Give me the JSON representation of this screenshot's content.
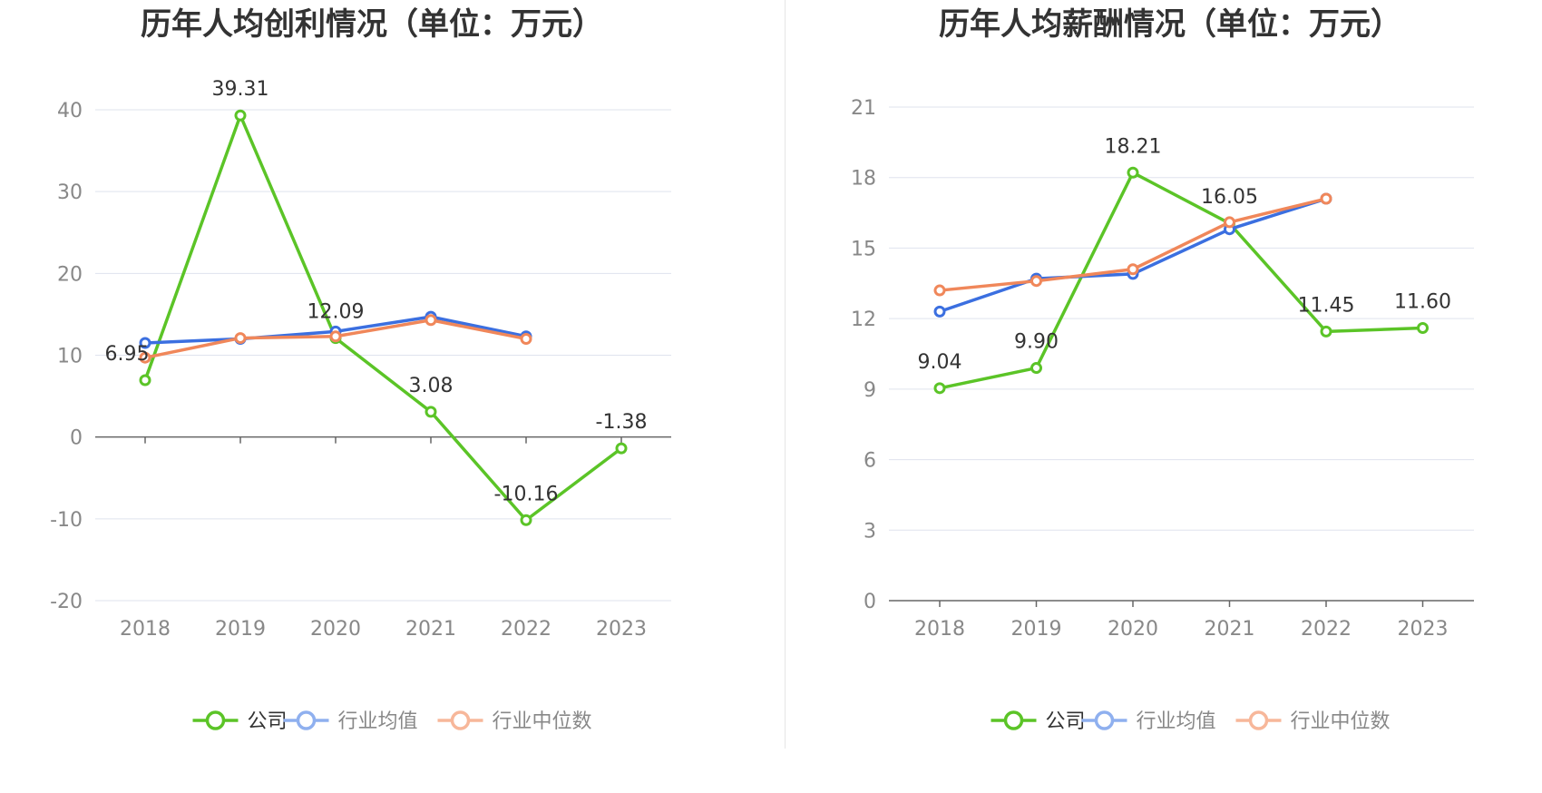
{
  "chart_data": [
    {
      "type": "line",
      "title": "历年人均创利情况（单位：万元）",
      "categories": [
        "2018",
        "2019",
        "2020",
        "2021",
        "2022",
        "2023"
      ],
      "yticks": [
        "40",
        "30",
        "20",
        "10",
        "0",
        "-10",
        "-20"
      ],
      "ylim": [
        -20,
        40
      ],
      "grid": true,
      "legend_position": "bottom",
      "series": [
        {
          "name": "公司",
          "color": "#5bc427",
          "values": [
            6.95,
            39.31,
            12.09,
            3.08,
            -10.16,
            -1.38
          ],
          "labels": [
            "6.95",
            "39.31",
            "12.09",
            "3.08",
            "-10.16",
            "-1.38"
          ]
        },
        {
          "name": "行业均值",
          "color": "#3b6fe0",
          "values": [
            11.5,
            12.0,
            12.9,
            14.7,
            12.3,
            null
          ]
        },
        {
          "name": "行业中位数",
          "color": "#f0875a",
          "values": [
            9.7,
            12.1,
            12.3,
            14.3,
            12.0,
            null
          ]
        }
      ]
    },
    {
      "type": "line",
      "title": "历年人均薪酬情况（单位：万元）",
      "categories": [
        "2018",
        "2019",
        "2020",
        "2021",
        "2022",
        "2023"
      ],
      "yticks": [
        "21",
        "18",
        "15",
        "12",
        "9",
        "6",
        "3",
        "0"
      ],
      "ylim": [
        0,
        21
      ],
      "grid": true,
      "legend_position": "bottom",
      "series": [
        {
          "name": "公司",
          "color": "#5bc427",
          "values": [
            9.04,
            9.9,
            18.21,
            16.05,
            11.45,
            11.6
          ],
          "labels": [
            "9.04",
            "9.90",
            "18.21",
            "16.05",
            "11.45",
            "11.60"
          ]
        },
        {
          "name": "行业均值",
          "color": "#3b6fe0",
          "values": [
            12.3,
            13.7,
            13.9,
            15.8,
            17.1,
            null
          ]
        },
        {
          "name": "行业中位数",
          "color": "#f0875a",
          "values": [
            13.2,
            13.6,
            14.1,
            16.1,
            17.1,
            null
          ]
        }
      ]
    }
  ],
  "legend": {
    "items": [
      {
        "name": "公司",
        "line_color": "#5bc427",
        "text_color": "#333333"
      },
      {
        "name": "行业均值",
        "line_color": "#8fb0ef",
        "text_color": "#888888"
      },
      {
        "name": "行业中位数",
        "line_color": "#f7b79a",
        "text_color": "#888888"
      }
    ]
  }
}
